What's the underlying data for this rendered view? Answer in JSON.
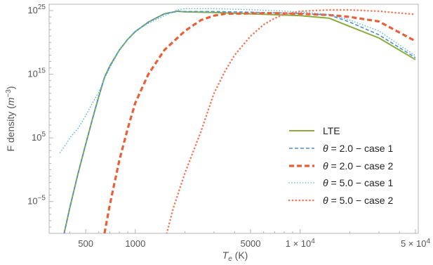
{
  "chart_data": {
    "type": "line",
    "x_scale": "log",
    "y_scale": "log",
    "xlabel_main": "T",
    "xlabel_sub": "e",
    "xlabel_unit": " (K)",
    "ylabel_main": "F density (",
    "ylabel_unit_base": "m",
    "ylabel_unit_exp": "−3",
    "ylabel_close": ")",
    "xlim": [
      300,
      52000
    ],
    "ylim_exp": [
      -10,
      26
    ],
    "x_ticks": [
      {
        "value": 500,
        "label": "500"
      },
      {
        "value": 1000,
        "label": "1000"
      },
      {
        "value": 5000,
        "label": "5000"
      },
      {
        "value": 10000,
        "label_base": "1 × 10",
        "label_exp": "4"
      },
      {
        "value": 50000,
        "label_base": "5 × 10",
        "label_exp": "4"
      }
    ],
    "y_ticks": [
      {
        "exp": 25,
        "base": "10",
        "sup": "25"
      },
      {
        "exp": 15,
        "base": "10",
        "sup": "15"
      },
      {
        "exp": 5,
        "base": "10",
        "sup": "5"
      },
      {
        "exp": -5,
        "base": "10",
        "sup": "−5"
      }
    ],
    "legend_position": "bottom-right",
    "series": [
      {
        "name": "LTE",
        "color": "#8aac3c",
        "style": "solid",
        "width": 2,
        "x": [
          370,
          400,
          450,
          500,
          550,
          600,
          650,
          700,
          800,
          900,
          1000,
          1200,
          1500,
          1800,
          2000,
          3000,
          5000,
          7000,
          10000,
          15000,
          20000,
          30000,
          50000
        ],
        "y_exp": [
          -10,
          -6,
          -0.5,
          4,
          8,
          11.5,
          14.5,
          16.3,
          18.8,
          20.5,
          21.7,
          23.2,
          24.5,
          24.9,
          24.8,
          24.7,
          24.5,
          24.35,
          24.2,
          23.8,
          22.5,
          20.7,
          17.3
        ]
      },
      {
        "name_prefix": "θ",
        "name_suffix": " = 2.0 − case 1",
        "color": "#4a90d0",
        "style": "dashed",
        "width": 1.6,
        "x": [
          370,
          400,
          450,
          500,
          550,
          600,
          650,
          700,
          800,
          900,
          1000,
          1200,
          1500,
          1800,
          2000,
          3000,
          5000,
          7000,
          10000,
          15000,
          20000,
          30000,
          50000
        ],
        "y_exp": [
          -10,
          -6,
          -0.5,
          4,
          8,
          11.5,
          14.5,
          16.3,
          18.8,
          20.5,
          21.7,
          23.2,
          24.5,
          24.9,
          24.85,
          24.85,
          24.75,
          24.65,
          24.55,
          24.3,
          23.2,
          21.2,
          17.6
        ]
      },
      {
        "name_prefix": "θ",
        "name_suffix": " = 2.0 − case 2",
        "color": "#e8603a",
        "style": "bold-dashed",
        "width": 3.2,
        "x": [
          650,
          700,
          800,
          900,
          1000,
          1200,
          1500,
          2000,
          2500,
          3000,
          3500,
          5000,
          7000,
          10000,
          15000,
          20000,
          30000,
          50000
        ],
        "y_exp": [
          -10,
          -5.5,
          1.5,
          6.5,
          10.5,
          15,
          18.8,
          21.8,
          23.5,
          24.2,
          24.5,
          24.55,
          24.6,
          24.5,
          24.3,
          24.0,
          23.3,
          20.2
        ]
      },
      {
        "name_prefix": "θ",
        "name_suffix": " = 5.0 − case 1",
        "color": "#5ab8d4",
        "style": "dotted",
        "width": 1.6,
        "x": [
          350,
          380,
          400,
          450,
          500,
          550,
          600,
          650,
          700,
          800,
          900,
          1000,
          1200,
          1500,
          1800,
          2000,
          3000,
          5000,
          7000,
          10000,
          15000,
          20000,
          30000,
          50000
        ],
        "y_exp": [
          2.7,
          4,
          5,
          6.5,
          8.5,
          10.5,
          12.2,
          14.3,
          16,
          18.8,
          20.5,
          21.8,
          23,
          24.2,
          25.1,
          25.3,
          25.3,
          25.15,
          25,
          24.8,
          24.4,
          23.5,
          21.8,
          17.9
        ]
      },
      {
        "name_prefix": "θ",
        "name_suffix": " = 5.0 − case 2",
        "color": "#f07a5a",
        "style": "dotted",
        "width": 2.6,
        "x": [
          1550,
          1700,
          2000,
          2500,
          3000,
          3500,
          4000,
          5000,
          6000,
          7000,
          8000,
          10000,
          15000,
          20000,
          30000,
          50000
        ],
        "y_exp": [
          -10,
          -6,
          -0.5,
          6,
          12,
          15.5,
          18,
          21,
          22.8,
          23.8,
          24.4,
          24.9,
          25.1,
          25.1,
          24.9,
          24.4
        ]
      }
    ]
  }
}
